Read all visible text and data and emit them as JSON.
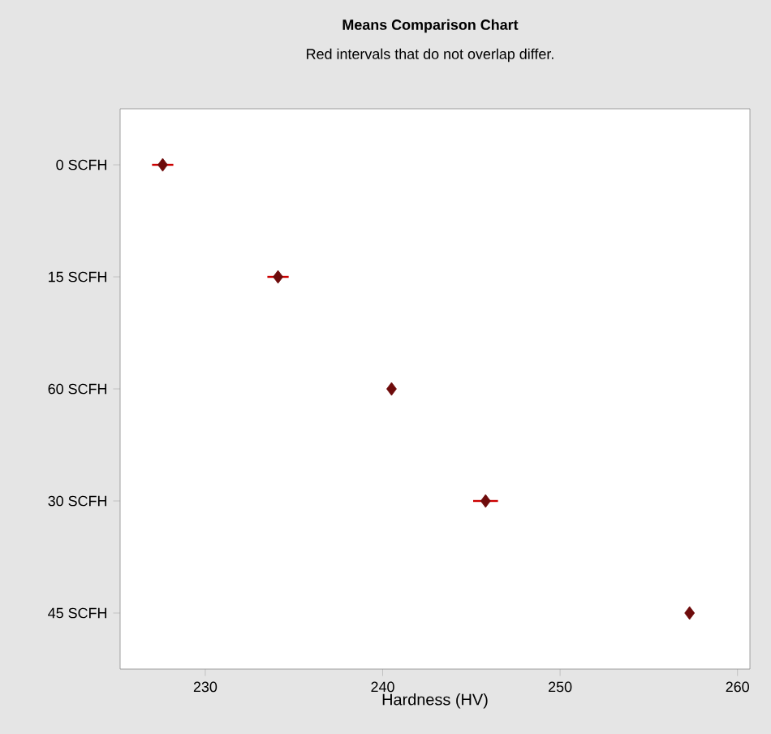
{
  "chart_data": {
    "type": "scatter",
    "orientation": "horizontal",
    "title": "Means Comparison Chart",
    "subtitle": "Red intervals that do not overlap differ.",
    "xlabel": "Hardness (HV)",
    "categories": [
      "0 SCFH",
      "15 SCFH",
      "60 SCFH",
      "30 SCFH",
      "45 SCFH"
    ],
    "values": [
      227.6,
      234.1,
      240.5,
      245.8,
      257.3
    ],
    "errors": [
      0.6,
      0.6,
      null,
      0.7,
      null
    ],
    "color": "#6e0b0b",
    "marker": "diamond",
    "xlim": [
      225.2,
      260.7
    ],
    "xticks": [
      230,
      240,
      250,
      260
    ],
    "grid": false
  }
}
